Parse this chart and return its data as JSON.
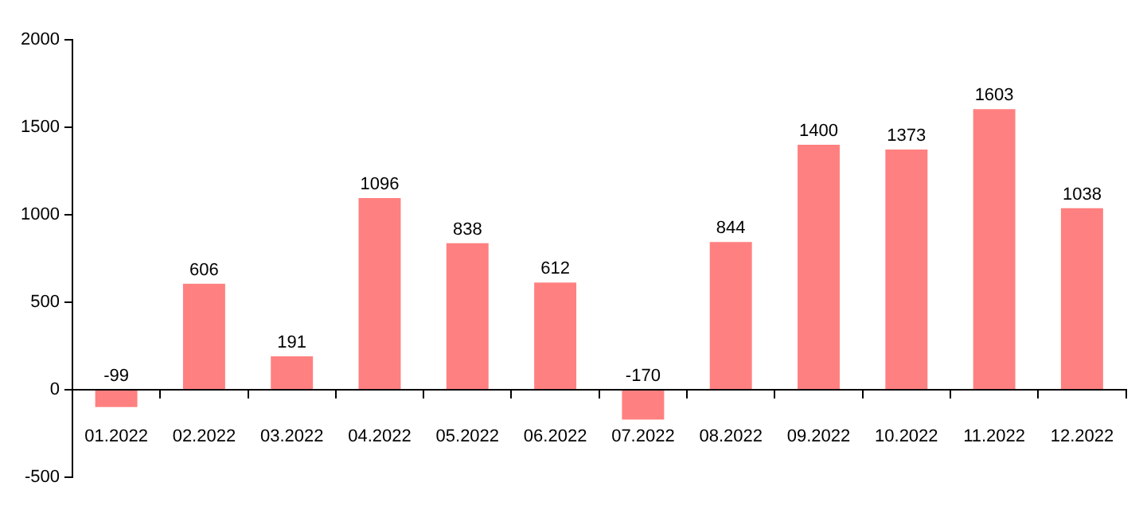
{
  "chart_data": {
    "type": "bar",
    "categories": [
      "01.2022",
      "02.2022",
      "03.2022",
      "04.2022",
      "05.2022",
      "06.2022",
      "07.2022",
      "08.2022",
      "09.2022",
      "10.2022",
      "11.2022",
      "12.2022"
    ],
    "values": [
      -99,
      606,
      191,
      1096,
      838,
      612,
      -170,
      844,
      1400,
      1373,
      1603,
      1038
    ],
    "color": "#ff8080",
    "ylim": [
      -500,
      2000
    ],
    "yticks": [
      -500,
      0,
      500,
      1000,
      1500,
      2000
    ],
    "grid": false,
    "legend": false,
    "data_labels": true
  }
}
